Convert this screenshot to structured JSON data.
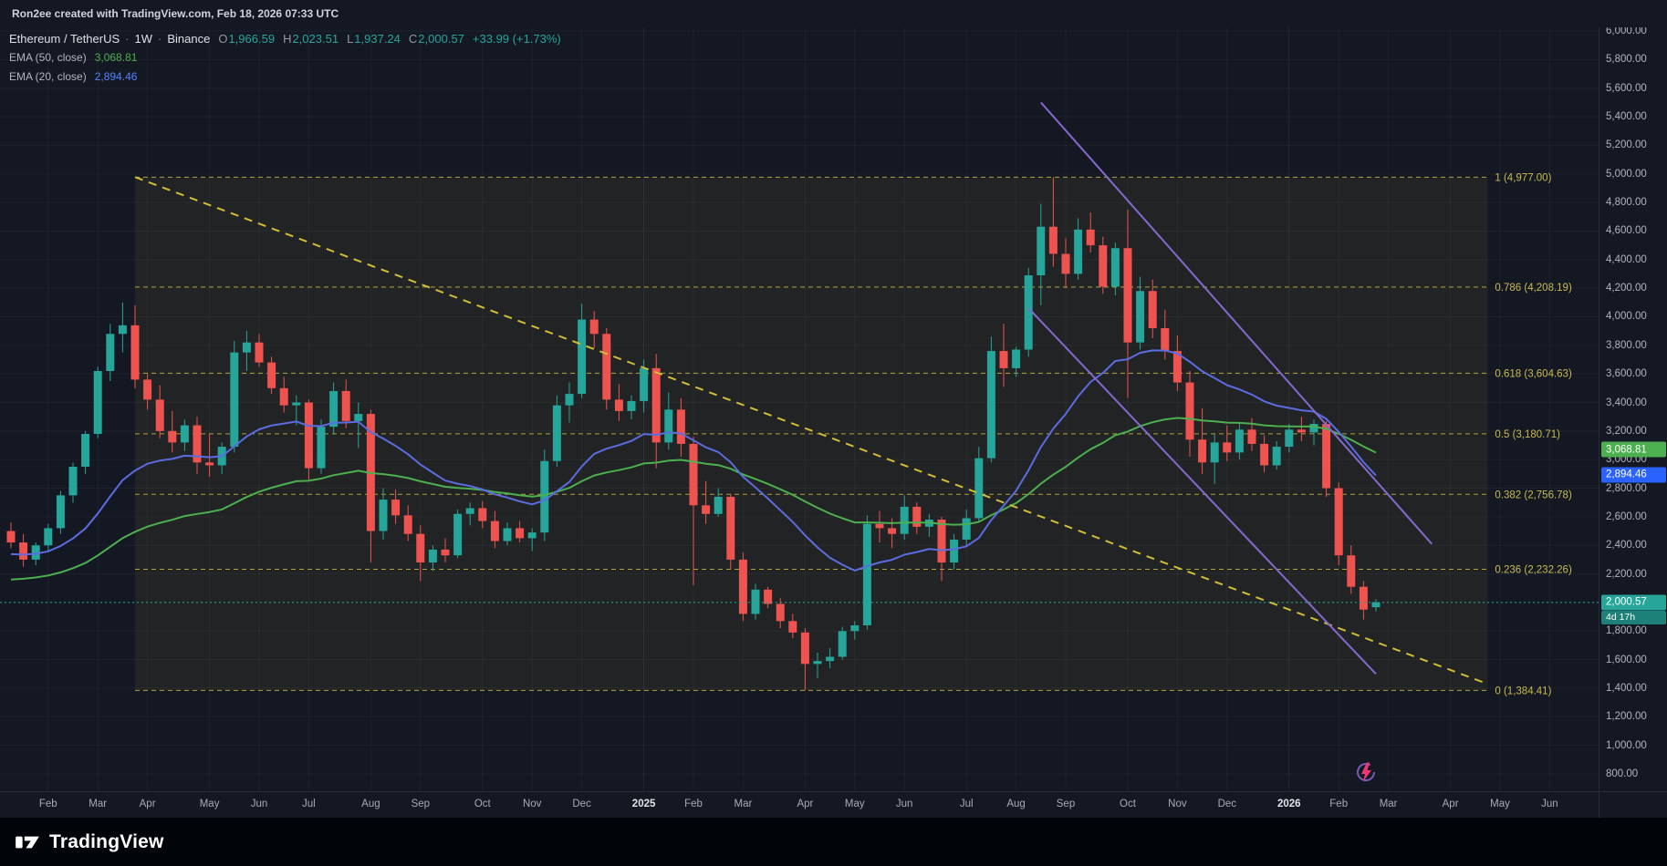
{
  "colors": {
    "bg": "#141823",
    "grid": "rgba(180,190,220,0.06)",
    "grid_strong": "rgba(180,190,220,0.10)",
    "up": "#26a69a",
    "down": "#ef5350",
    "ema50": "#4caf50",
    "ema20": "#5b6ce1",
    "fib_line": "#aea23f",
    "fib_text": "#c9bb4f",
    "fib_fill": "rgba(175,160,60,0.09)",
    "trend_yellow": "#d0bd3a",
    "trend_purple": "#8569cf",
    "axis_text": "#b2b5be",
    "badge_green": "#4caf50",
    "badge_blue": "#2962ff",
    "badge_teal": "#26a69a"
  },
  "top_bar": {
    "attribution": "Ron2ee created with TradingView.com, Feb 18, 2026 07:33 UTC"
  },
  "legend": {
    "symbol": "Ethereum / TetherUS",
    "separator": "·",
    "interval": "1W",
    "exchange": "Binance",
    "ohlc": [
      {
        "label": "O",
        "value": "1,966.59"
      },
      {
        "label": "H",
        "value": "2,023.51"
      },
      {
        "label": "L",
        "value": "1,937.24"
      },
      {
        "label": "C",
        "value": "2,000.57"
      }
    ],
    "change": "+33.99 (+1.73%)",
    "indicators": [
      {
        "label": "EMA (50, close)",
        "value": "3,068.81"
      },
      {
        "label": "EMA (20, close)",
        "value": "2,894.46"
      }
    ]
  },
  "price_axis": {
    "min": 800,
    "max": 6000,
    "step": 200,
    "labels": [
      "6,000.00",
      "5,800.00",
      "5,600.00",
      "5,400.00",
      "5,200.00",
      "5,000.00",
      "4,800.00",
      "4,600.00",
      "4,400.00",
      "4,200.00",
      "4,000.00",
      "3,800.00",
      "3,600.00",
      "3,400.00",
      "3,200.00",
      "3,000.00",
      "2,800.00",
      "2,600.00",
      "2,400.00",
      "2,200.00",
      "2,000.00",
      "1,800.00",
      "1,600.00",
      "1,400.00",
      "1,200.00",
      "1,000.00",
      "800.00"
    ],
    "badges": [
      {
        "text": "3,068.81",
        "price": 3068.81,
        "type": "ema50"
      },
      {
        "text": "2,894.46",
        "price": 2894.46,
        "type": "ema20"
      },
      {
        "text": "2,000.57",
        "price": 2000.57,
        "type": "last",
        "countdown": "4d 17h"
      }
    ]
  },
  "time_axis": {
    "ticks": [
      {
        "label": "Feb",
        "i": 3
      },
      {
        "label": "Mar",
        "i": 7
      },
      {
        "label": "Apr",
        "i": 11
      },
      {
        "label": "May",
        "i": 16
      },
      {
        "label": "Jun",
        "i": 20
      },
      {
        "label": "Jul",
        "i": 24
      },
      {
        "label": "Aug",
        "i": 29
      },
      {
        "label": "Sep",
        "i": 33
      },
      {
        "label": "Oct",
        "i": 38
      },
      {
        "label": "Nov",
        "i": 42
      },
      {
        "label": "Dec",
        "i": 46
      },
      {
        "label": "2025",
        "i": 51,
        "year": true
      },
      {
        "label": "Feb",
        "i": 55
      },
      {
        "label": "Mar",
        "i": 59
      },
      {
        "label": "Apr",
        "i": 64
      },
      {
        "label": "May",
        "i": 68
      },
      {
        "label": "Jun",
        "i": 72
      },
      {
        "label": "Jul",
        "i": 77
      },
      {
        "label": "Aug",
        "i": 81
      },
      {
        "label": "Sep",
        "i": 85
      },
      {
        "label": "Oct",
        "i": 90
      },
      {
        "label": "Nov",
        "i": 94
      },
      {
        "label": "Dec",
        "i": 98
      },
      {
        "label": "2026",
        "i": 103,
        "year": true
      },
      {
        "label": "Feb",
        "i": 107
      },
      {
        "label": "Mar",
        "i": 111
      },
      {
        "label": "Apr",
        "i": 116
      },
      {
        "label": "May",
        "i": 120
      },
      {
        "label": "Jun",
        "i": 124
      }
    ]
  },
  "chart_data": {
    "type": "candlestick",
    "symbol": "Ethereum / TetherUS",
    "exchange": "Binance",
    "interval": "1W",
    "grid": true,
    "price_range": [
      800,
      6000
    ],
    "grid_step": 200,
    "last_price": 2000.57,
    "last_bar_countdown": "4d 17h",
    "candles": [
      [
        2500,
        2560,
        2380,
        2420
      ],
      [
        2420,
        2480,
        2250,
        2300
      ],
      [
        2300,
        2420,
        2260,
        2400
      ],
      [
        2400,
        2550,
        2350,
        2520
      ],
      [
        2520,
        2780,
        2480,
        2750
      ],
      [
        2750,
        2980,
        2700,
        2950
      ],
      [
        2950,
        3200,
        2900,
        3180
      ],
      [
        3180,
        3650,
        3150,
        3620
      ],
      [
        3620,
        3950,
        3550,
        3880
      ],
      [
        3880,
        4100,
        3750,
        3940
      ],
      [
        3940,
        4080,
        3500,
        3560
      ],
      [
        3560,
        3600,
        3350,
        3420
      ],
      [
        3420,
        3520,
        3150,
        3200
      ],
      [
        3200,
        3340,
        3050,
        3120
      ],
      [
        3120,
        3280,
        3060,
        3240
      ],
      [
        3240,
        3300,
        2900,
        2980
      ],
      [
        2980,
        3180,
        2880,
        2960
      ],
      [
        2960,
        3120,
        2900,
        3090
      ],
      [
        3090,
        3830,
        3050,
        3750
      ],
      [
        3750,
        3900,
        3620,
        3820
      ],
      [
        3820,
        3880,
        3650,
        3680
      ],
      [
        3680,
        3720,
        3460,
        3500
      ],
      [
        3500,
        3580,
        3330,
        3380
      ],
      [
        3380,
        3450,
        3240,
        3400
      ],
      [
        3400,
        3420,
        2850,
        2940
      ],
      [
        2940,
        3280,
        2900,
        3230
      ],
      [
        3230,
        3540,
        3180,
        3480
      ],
      [
        3480,
        3560,
        3220,
        3270
      ],
      [
        3270,
        3400,
        3080,
        3320
      ],
      [
        3320,
        3350,
        2280,
        2500
      ],
      [
        2500,
        2800,
        2440,
        2720
      ],
      [
        2720,
        2790,
        2550,
        2610
      ],
      [
        2610,
        2680,
        2430,
        2480
      ],
      [
        2480,
        2540,
        2150,
        2280
      ],
      [
        2280,
        2400,
        2220,
        2370
      ],
      [
        2370,
        2450,
        2280,
        2330
      ],
      [
        2330,
        2650,
        2310,
        2620
      ],
      [
        2620,
        2700,
        2540,
        2660
      ],
      [
        2660,
        2710,
        2520,
        2570
      ],
      [
        2570,
        2640,
        2380,
        2430
      ],
      [
        2430,
        2560,
        2400,
        2520
      ],
      [
        2520,
        2570,
        2420,
        2450
      ],
      [
        2450,
        2520,
        2360,
        2490
      ],
      [
        2490,
        3070,
        2430,
        2990
      ],
      [
        2990,
        3450,
        2950,
        3380
      ],
      [
        3380,
        3540,
        3260,
        3460
      ],
      [
        3460,
        4090,
        3430,
        3980
      ],
      [
        3980,
        4040,
        3780,
        3880
      ],
      [
        3880,
        3920,
        3350,
        3420
      ],
      [
        3420,
        3530,
        3270,
        3340
      ],
      [
        3340,
        3450,
        3280,
        3410
      ],
      [
        3410,
        3700,
        3330,
        3640
      ],
      [
        3640,
        3740,
        2940,
        3120
      ],
      [
        3120,
        3470,
        3070,
        3350
      ],
      [
        3350,
        3430,
        3020,
        3110
      ],
      [
        3110,
        3160,
        2120,
        2680
      ],
      [
        2680,
        2850,
        2550,
        2620
      ],
      [
        2620,
        2800,
        2600,
        2740
      ],
      [
        2740,
        2760,
        2230,
        2300
      ],
      [
        2300,
        2350,
        1870,
        1920
      ],
      [
        1920,
        2130,
        1880,
        2090
      ],
      [
        2090,
        2110,
        1960,
        1990
      ],
      [
        1990,
        2030,
        1820,
        1870
      ],
      [
        1870,
        1920,
        1750,
        1790
      ],
      [
        1790,
        1820,
        1385,
        1570
      ],
      [
        1570,
        1650,
        1470,
        1590
      ],
      [
        1590,
        1680,
        1540,
        1620
      ],
      [
        1620,
        1830,
        1600,
        1800
      ],
      [
        1800,
        1870,
        1740,
        1840
      ],
      [
        1840,
        2610,
        1810,
        2550
      ],
      [
        2550,
        2640,
        2420,
        2520
      ],
      [
        2520,
        2590,
        2380,
        2480
      ],
      [
        2480,
        2750,
        2440,
        2670
      ],
      [
        2670,
        2700,
        2480,
        2530
      ],
      [
        2530,
        2620,
        2460,
        2580
      ],
      [
        2580,
        2600,
        2150,
        2280
      ],
      [
        2280,
        2480,
        2230,
        2440
      ],
      [
        2440,
        2650,
        2390,
        2590
      ],
      [
        2590,
        3090,
        2560,
        3010
      ],
      [
        3010,
        3860,
        2980,
        3760
      ],
      [
        3760,
        3950,
        3510,
        3640
      ],
      [
        3640,
        3790,
        3580,
        3770
      ],
      [
        3770,
        4340,
        3720,
        4290
      ],
      [
        4290,
        4790,
        4080,
        4630
      ],
      [
        4630,
        4977,
        4350,
        4440
      ],
      [
        4440,
        4550,
        4200,
        4300
      ],
      [
        4300,
        4690,
        4260,
        4610
      ],
      [
        4610,
        4730,
        4450,
        4500
      ],
      [
        4500,
        4560,
        4160,
        4210
      ],
      [
        4210,
        4520,
        4150,
        4480
      ],
      [
        4480,
        4750,
        3430,
        3820
      ],
      [
        3820,
        4280,
        3770,
        4180
      ],
      [
        4180,
        4260,
        3850,
        3920
      ],
      [
        3920,
        4050,
        3700,
        3760
      ],
      [
        3760,
        3870,
        3480,
        3540
      ],
      [
        3540,
        3620,
        3020,
        3140
      ],
      [
        3140,
        3360,
        2900,
        2980
      ],
      [
        2980,
        3180,
        2830,
        3120
      ],
      [
        3120,
        3240,
        2990,
        3050
      ],
      [
        3050,
        3260,
        3000,
        3210
      ],
      [
        3210,
        3290,
        3060,
        3110
      ],
      [
        3110,
        3170,
        2910,
        2960
      ],
      [
        2960,
        3130,
        2930,
        3090
      ],
      [
        3090,
        3250,
        3050,
        3210
      ],
      [
        3210,
        3300,
        3130,
        3190
      ],
      [
        3190,
        3280,
        3100,
        3250
      ],
      [
        3250,
        3270,
        2740,
        2800
      ],
      [
        2800,
        2840,
        2260,
        2330
      ],
      [
        2330,
        2400,
        2060,
        2110
      ],
      [
        2110,
        2150,
        1880,
        1950
      ],
      [
        1966.59,
        2023.51,
        1937.24,
        2000.57
      ]
    ],
    "emas": [
      {
        "period": 50,
        "seed": 2150,
        "color": "#4caf50",
        "last_value": 3068.81
      },
      {
        "period": 20,
        "seed": 2330,
        "color": "#5b6ce1",
        "last_value": 2894.46
      }
    ],
    "fib": {
      "start_index": 10,
      "end_index": 119,
      "levels": [
        {
          "ratio": 1,
          "price": 4977.0,
          "label": "1 (4,977.00)"
        },
        {
          "ratio": 0.786,
          "price": 4208.19,
          "label": "0.786 (4,208.19)"
        },
        {
          "ratio": 0.618,
          "price": 3604.63,
          "label": "0.618 (3,604.63)"
        },
        {
          "ratio": 0.5,
          "price": 3180.71,
          "label": "0.5 (3,180.71)"
        },
        {
          "ratio": 0.382,
          "price": 2756.78,
          "label": "0.382 (2,756.78)"
        },
        {
          "ratio": 0.236,
          "price": 2232.26,
          "label": "0.236 (2,232.26)"
        },
        {
          "ratio": 0,
          "price": 1384.41,
          "label": "0 (1,384.41)"
        }
      ]
    },
    "trendlines": [
      {
        "name": "trendline-yellow-dashed",
        "i1": 10,
        "p1": 4977,
        "i2": 119,
        "p2": 1430,
        "color": "#d0bd3a",
        "dash": "9,7"
      },
      {
        "name": "trendline-purple-upper",
        "i1": 83,
        "p1": 5500,
        "i2": 114.5,
        "p2": 2410,
        "color": "#8569cf",
        "dash": ""
      },
      {
        "name": "trendline-purple-lower",
        "i1": 82,
        "p1": 4060,
        "i2": 110,
        "p2": 1500,
        "color": "#8569cf",
        "dash": ""
      }
    ]
  },
  "footer": {
    "brand": "TradingView"
  },
  "icons": {
    "flash": "lightning-replay-marker",
    "logo": "tradingview-logomark"
  }
}
